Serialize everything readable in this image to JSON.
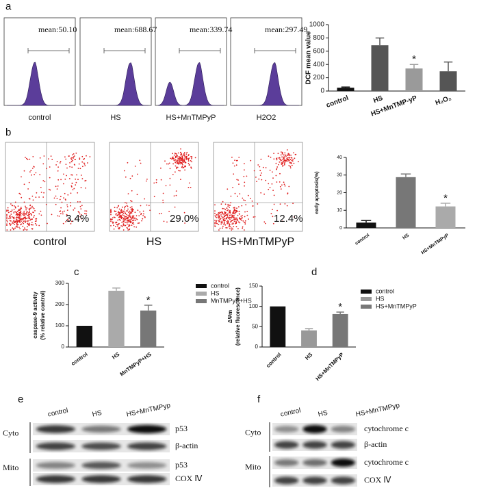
{
  "panel_labels": [
    "a",
    "b",
    "c",
    "d",
    "e",
    "f"
  ],
  "flow_histograms": [
    {
      "mean": "mean:50.10",
      "label": "control"
    },
    {
      "mean": "mean:688.67",
      "label": "HS"
    },
    {
      "mean": "mean:339.74",
      "label": "HS+MnTMPyP"
    },
    {
      "mean": "mean:297.49",
      "label": "H2O2"
    }
  ],
  "scatter_plots": [
    {
      "percent": "3.4%",
      "label": "control"
    },
    {
      "percent": "29.0%",
      "label": "HS"
    },
    {
      "percent": "12.4%",
      "label": "HS+MnTMPyP"
    }
  ],
  "chart_data": [
    {
      "type": "bar",
      "ylabel": [
        "DCF mean value"
      ],
      "categories": [
        "control",
        "HS",
        "HS+MnTMP-yP",
        "H₂O₂"
      ],
      "values": [
        50,
        689,
        340,
        297
      ],
      "errors": [
        10,
        110,
        60,
        140
      ],
      "colors": [
        "#111111",
        "#555555",
        "#9a9a9a",
        "#555555"
      ],
      "ylim": [
        0,
        1000
      ],
      "yticks": [
        0,
        200,
        400,
        600,
        800,
        1000
      ],
      "annotation": "*",
      "legend": false
    },
    {
      "type": "bar",
      "ylabel": [
        "early apoptosis(%)"
      ],
      "categories": [
        "control",
        "HS",
        "HS+MnTMPyP"
      ],
      "values": [
        3,
        28.8,
        12.2
      ],
      "errors": [
        1.2,
        1.8,
        1.8
      ],
      "colors": [
        "#111111",
        "#777777",
        "#aaaaaa"
      ],
      "ylim": [
        0,
        40
      ],
      "yticks": [
        0,
        10,
        20,
        30,
        40
      ],
      "annotation": "*",
      "legend": false
    },
    {
      "type": "bar",
      "ylabel": [
        "caspase-9 activity",
        "(% relative control)"
      ],
      "categories": [
        "control",
        "HS",
        "MnTMPyP+HS"
      ],
      "values": [
        100,
        265,
        172
      ],
      "errors": [
        0,
        13,
        25
      ],
      "colors": [
        "#111111",
        "#aaaaaa",
        "#777777"
      ],
      "ylim": [
        0,
        300
      ],
      "yticks": [
        0,
        100,
        200,
        300
      ],
      "annotation": "*",
      "legend": true
    },
    {
      "type": "bar",
      "ylabel": [
        "ΔΨm",
        "(relative fluorescence)"
      ],
      "categories": [
        "control",
        "HS",
        "HS+MnTMPyP"
      ],
      "values": [
        100,
        41,
        81
      ],
      "errors": [
        0,
        4,
        5
      ],
      "colors": [
        "#111111",
        "#999999",
        "#777777"
      ],
      "ylim": [
        0,
        150
      ],
      "yticks": [
        0,
        50,
        100,
        150
      ],
      "annotation": "*",
      "legend": true
    }
  ],
  "blots": [
    {
      "columns": [
        "control",
        "HS",
        "HS+MnTMPyp"
      ],
      "groups": [
        "Cyto",
        "Mito"
      ],
      "rows": [
        "p53",
        "β-actin",
        "p53",
        "COX Ⅳ"
      ]
    },
    {
      "columns": [
        "control",
        "HS",
        "HS+MnTMPyp"
      ],
      "groups": [
        "Cyto",
        "Mito"
      ],
      "rows": [
        "cytochrome c",
        "β-actin",
        "cytochrome c",
        "COX Ⅳ"
      ]
    }
  ]
}
